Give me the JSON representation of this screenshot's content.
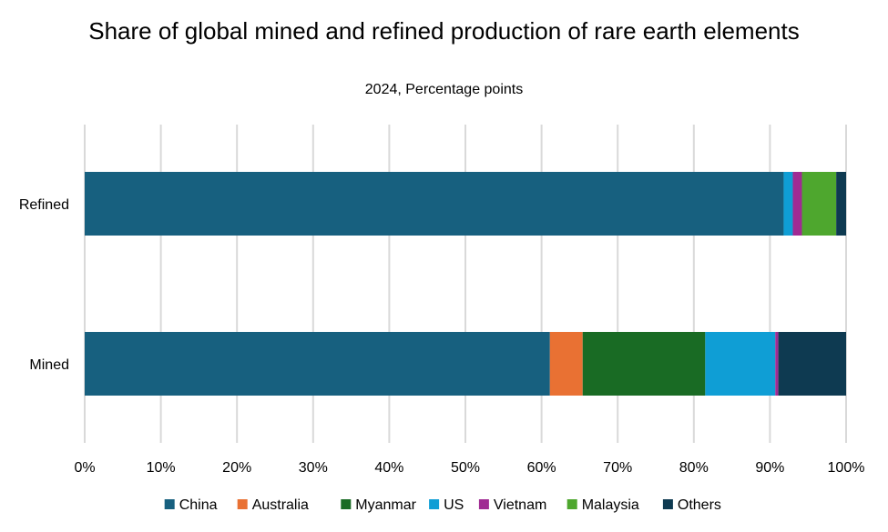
{
  "chart_data": {
    "type": "bar",
    "orientation": "horizontal",
    "stacked": true,
    "title": "Share of global mined and refined production of rare earth elements",
    "subtitle": "2024, Percentage points",
    "categories": [
      "Refined",
      "Mined"
    ],
    "series": [
      {
        "name": "China",
        "color": "#17607f",
        "values": [
          91.8,
          61.1
        ]
      },
      {
        "name": "Australia",
        "color": "#e97133",
        "values": [
          0.0,
          4.3
        ]
      },
      {
        "name": "Myanmar",
        "color": "#196b24",
        "values": [
          0.0,
          16.1
        ]
      },
      {
        "name": "US",
        "color": "#0f9ed5",
        "values": [
          1.2,
          9.2
        ]
      },
      {
        "name": "Vietnam",
        "color": "#a02b93",
        "values": [
          1.2,
          0.4
        ]
      },
      {
        "name": "Malaysia",
        "color": "#4ea72e",
        "values": [
          4.5,
          0.0
        ]
      },
      {
        "name": "Others",
        "color": "#0e3a51",
        "values": [
          1.3,
          8.9
        ]
      }
    ],
    "xlim": [
      0,
      100
    ],
    "xticks": [
      "0%",
      "10%",
      "20%",
      "30%",
      "40%",
      "50%",
      "60%",
      "70%",
      "80%",
      "90%",
      "100%"
    ],
    "grid": "vertical",
    "legend": "bottom"
  }
}
